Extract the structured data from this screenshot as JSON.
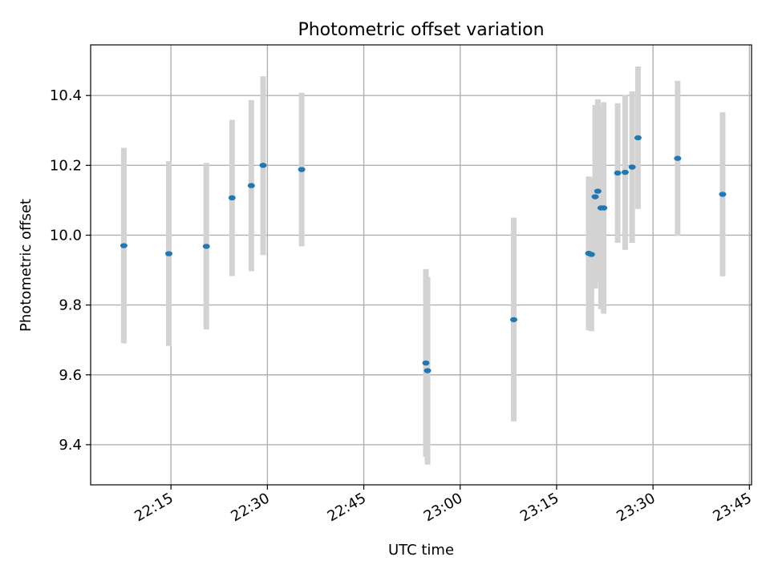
{
  "chart_data": {
    "type": "scatter",
    "title": "Photometric offset variation",
    "xlabel": "UTC time",
    "ylabel": "Photometric offset",
    "x_tick_labels": [
      "22:15",
      "22:30",
      "22:45",
      "23:00",
      "23:15",
      "23:30",
      "23:45"
    ],
    "y_tick_labels": [
      "9.4",
      "9.6",
      "9.8",
      "10.0",
      "10.2",
      "10.4"
    ],
    "y_ticks": [
      9.4,
      9.6,
      9.8,
      10.0,
      10.2,
      10.4
    ],
    "xlim": [
      "22:02:30",
      "23:45:20"
    ],
    "ylim": [
      9.285,
      10.545
    ],
    "grid": true,
    "marker_color": "#1f77b4",
    "errorbar_color": "#d3d3d3",
    "series": [
      {
        "points": [
          {
            "x": "22:07:40",
            "y": 9.97,
            "ylow": 9.69,
            "yhigh": 10.25
          },
          {
            "x": "22:14:40",
            "y": 9.947,
            "ylow": 9.683,
            "yhigh": 10.212
          },
          {
            "x": "22:20:30",
            "y": 9.968,
            "ylow": 9.73,
            "yhigh": 10.207
          },
          {
            "x": "22:24:30",
            "y": 10.107,
            "ylow": 9.883,
            "yhigh": 10.33
          },
          {
            "x": "22:27:30",
            "y": 10.142,
            "ylow": 9.897,
            "yhigh": 10.387
          },
          {
            "x": "22:29:20",
            "y": 10.2,
            "ylow": 9.943,
            "yhigh": 10.455
          },
          {
            "x": "22:35:20",
            "y": 10.188,
            "ylow": 9.968,
            "yhigh": 10.408
          },
          {
            "x": "22:54:40",
            "y": 9.634,
            "ylow": 9.365,
            "yhigh": 9.903
          },
          {
            "x": "22:54:55",
            "y": 9.612,
            "ylow": 9.343,
            "yhigh": 9.88
          },
          {
            "x": "23:08:20",
            "y": 9.758,
            "ylow": 9.467,
            "yhigh": 10.05
          },
          {
            "x": "23:20:00",
            "y": 9.948,
            "ylow": 9.728,
            "yhigh": 10.168
          },
          {
            "x": "23:20:25",
            "y": 9.945,
            "ylow": 9.725,
            "yhigh": 10.165
          },
          {
            "x": "23:21:00",
            "y": 10.11,
            "ylow": 9.847,
            "yhigh": 10.373
          },
          {
            "x": "23:21:25",
            "y": 10.126,
            "ylow": 9.863,
            "yhigh": 10.389
          },
          {
            "x": "23:21:55",
            "y": 10.078,
            "ylow": 9.788,
            "yhigh": 10.368
          },
          {
            "x": "23:22:20",
            "y": 10.078,
            "ylow": 9.775,
            "yhigh": 10.381
          },
          {
            "x": "23:24:30",
            "y": 10.178,
            "ylow": 9.978,
            "yhigh": 10.378
          },
          {
            "x": "23:25:40",
            "y": 10.18,
            "ylow": 9.958,
            "yhigh": 10.402
          },
          {
            "x": "23:26:45",
            "y": 10.195,
            "ylow": 9.978,
            "yhigh": 10.412
          },
          {
            "x": "23:27:40",
            "y": 10.279,
            "ylow": 10.075,
            "yhigh": 10.483
          },
          {
            "x": "23:33:50",
            "y": 10.22,
            "ylow": 9.998,
            "yhigh": 10.442
          },
          {
            "x": "23:40:50",
            "y": 10.117,
            "ylow": 9.882,
            "yhigh": 10.352
          }
        ]
      }
    ]
  }
}
